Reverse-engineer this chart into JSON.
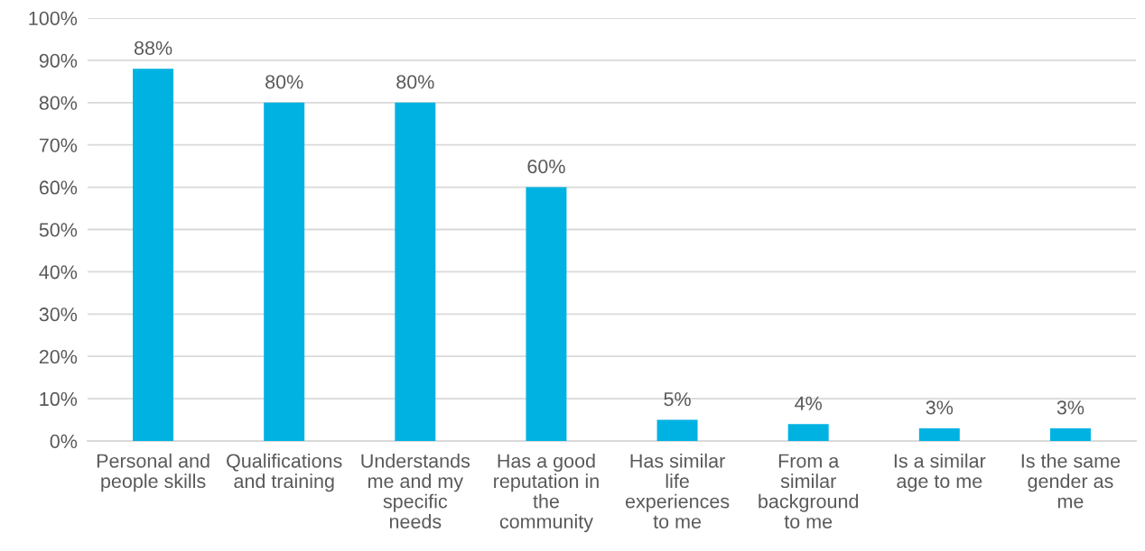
{
  "chart_data": {
    "type": "bar",
    "categories": [
      "Personal and\npeople skills",
      "Qualifications\nand training",
      "Understands\nme and my\nspecific\nneeds",
      "Has a good\nreputation in\nthe\ncommunity",
      "Has similar\nlife\nexperiences\nto me",
      "From a\nsimilar\nbackground\nto me",
      "Is a similar\nage to me",
      "Is the same\ngender as\nme"
    ],
    "values": [
      88,
      80,
      80,
      60,
      5,
      4,
      3,
      3
    ],
    "value_labels": [
      "88%",
      "80%",
      "80%",
      "60%",
      "5%",
      "4%",
      "3%",
      "3%"
    ],
    "color": "#00b2e2",
    "ylim": [
      0,
      100
    ],
    "yticks": [
      {
        "value": 0,
        "label": "0%"
      },
      {
        "value": 10,
        "label": "10%"
      },
      {
        "value": 20,
        "label": "20%"
      },
      {
        "value": 30,
        "label": "30%"
      },
      {
        "value": 40,
        "label": "40%"
      },
      {
        "value": 50,
        "label": "50%"
      },
      {
        "value": 60,
        "label": "60%"
      },
      {
        "value": 70,
        "label": "70%"
      },
      {
        "value": 80,
        "label": "80%"
      },
      {
        "value": 90,
        "label": "90%"
      },
      {
        "value": 100,
        "label": "100%"
      }
    ],
    "grid": "y"
  }
}
